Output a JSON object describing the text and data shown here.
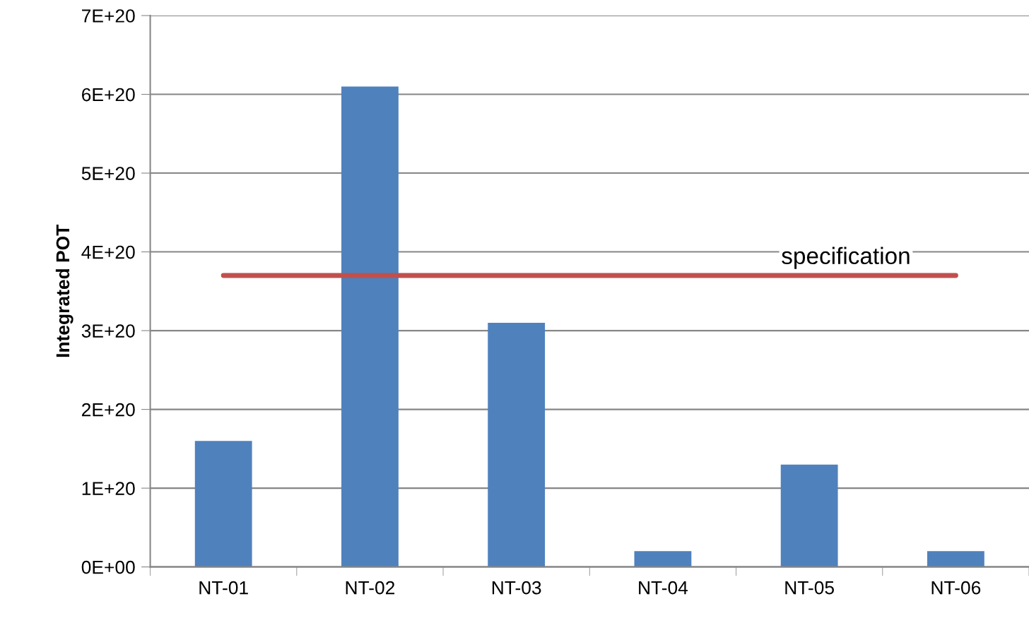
{
  "chart_data": {
    "type": "bar",
    "ylabel": "Integrated POT",
    "categories": [
      "NT-01",
      "NT-02",
      "NT-03",
      "NT-04",
      "NT-05",
      "NT-06"
    ],
    "values": [
      1.6e+20,
      6.1e+20,
      3.1e+20,
      2e+19,
      1.3e+20,
      2e+19
    ],
    "color": "#4f81bd",
    "ylim": [
      0,
      7e+20
    ],
    "yticks": [
      {
        "value": 0,
        "label": "0E+00"
      },
      {
        "value": 1e+20,
        "label": "1E+20"
      },
      {
        "value": 2e+20,
        "label": "2E+20"
      },
      {
        "value": 3e+20,
        "label": "3E+20"
      },
      {
        "value": 4e+20,
        "label": "4E+20"
      },
      {
        "value": 5e+20,
        "label": "5E+20"
      },
      {
        "value": 6e+20,
        "label": "6E+20"
      },
      {
        "value": 7e+20,
        "label": "7E+20"
      }
    ],
    "grid": "y",
    "ref_lines": [
      {
        "axis": "y",
        "value": 3.7e+20,
        "label": "specification",
        "color": "#c0504d"
      }
    ]
  }
}
